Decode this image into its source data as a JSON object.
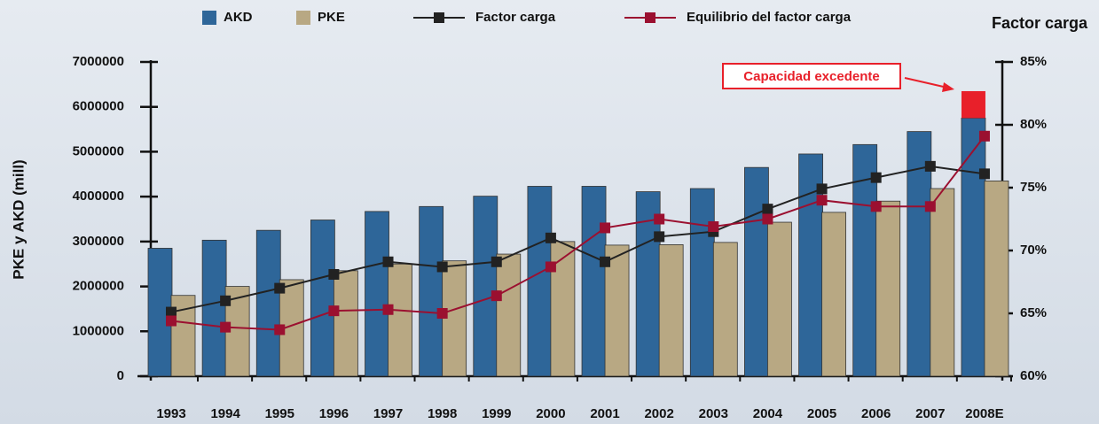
{
  "chart_data": {
    "type": "bar",
    "y_label": "PKE y AKD (mill)",
    "y2_label": "Factor carga",
    "categories": [
      "1993",
      "1994",
      "1995",
      "1996",
      "1997",
      "1998",
      "1999",
      "2000",
      "2001",
      "2002",
      "2003",
      "2004",
      "2005",
      "2006",
      "2007",
      "2008E"
    ],
    "series": [
      {
        "name": "AKD",
        "color": "#2e6699",
        "type": "bar",
        "values": [
          2850000,
          3030000,
          3250000,
          3480000,
          3670000,
          3780000,
          4010000,
          4230000,
          4230000,
          4110000,
          4180000,
          4650000,
          4950000,
          5160000,
          5450000,
          5750000
        ]
      },
      {
        "name": "PKE",
        "color": "#b8a883",
        "type": "bar",
        "values": [
          1800000,
          2000000,
          2150000,
          2350000,
          2500000,
          2570000,
          2720000,
          3000000,
          2920000,
          2930000,
          2980000,
          3430000,
          3650000,
          3900000,
          4180000,
          4350000
        ]
      },
      {
        "name": "Factor carga",
        "color": "#222222",
        "type": "line",
        "axis": "y2",
        "values": [
          65.1,
          66.0,
          67.0,
          68.1,
          69.1,
          68.7,
          69.1,
          71.0,
          69.1,
          71.1,
          71.5,
          73.3,
          74.9,
          75.8,
          76.7,
          76.1
        ]
      },
      {
        "name": "Equilibrio del factor carga",
        "color": "#9b1030",
        "type": "line",
        "axis": "y2",
        "values": [
          64.4,
          63.9,
          63.7,
          65.2,
          65.3,
          65.0,
          66.4,
          68.7,
          71.8,
          72.5,
          71.9,
          72.5,
          74.0,
          73.5,
          73.5,
          79.1
        ]
      }
    ],
    "annotation": {
      "text": "Capacidad excedente",
      "category": 15,
      "value": 600000,
      "color": "#e8202a"
    },
    "ylim": [
      0,
      7000000
    ],
    "yticks": [
      0,
      1000000,
      2000000,
      3000000,
      4000000,
      5000000,
      6000000,
      7000000
    ],
    "y2lim": [
      60,
      85
    ],
    "y2ticks": [
      {
        "value": 60,
        "label": "60%"
      },
      {
        "value": 65,
        "label": "65%"
      },
      {
        "value": 70,
        "label": "70%"
      },
      {
        "value": 75,
        "label": "75%"
      },
      {
        "value": 80,
        "label": "80%"
      },
      {
        "value": 85,
        "label": "85%"
      }
    ],
    "legend": "top"
  }
}
